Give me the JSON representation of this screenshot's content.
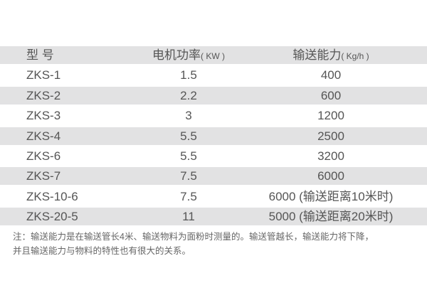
{
  "table": {
    "headers": [
      {
        "label": "型 号",
        "unit": ""
      },
      {
        "label": "电机功率",
        "unit": "( KW )"
      },
      {
        "label": "输送能力",
        "unit": "( Kg/h )"
      }
    ],
    "rows": [
      [
        "ZKS-1",
        "1.5",
        "400"
      ],
      [
        "ZKS-2",
        "2.2",
        "600"
      ],
      [
        "ZKS-3",
        "3",
        "1200"
      ],
      [
        "ZKS-4",
        "5.5",
        "2500"
      ],
      [
        "ZKS-6",
        "5.5",
        "3200"
      ],
      [
        "ZKS-7",
        "7.5",
        "6000"
      ],
      [
        "ZKS-10-6",
        "7.5",
        "6000 (输送距离10米时)"
      ],
      [
        "ZKS-20-5",
        "11",
        "5000 (输送距离20米时)"
      ]
    ]
  },
  "note": {
    "line1": "注：输送能力是在输送管长4米、输送物料为面粉时测量的。输送管越长，输送能力将下降，",
    "line2": "并且输送能力与物料的特性也有很大的关系。"
  },
  "colors": {
    "band": "#e2e2e3",
    "text": "#555555"
  }
}
